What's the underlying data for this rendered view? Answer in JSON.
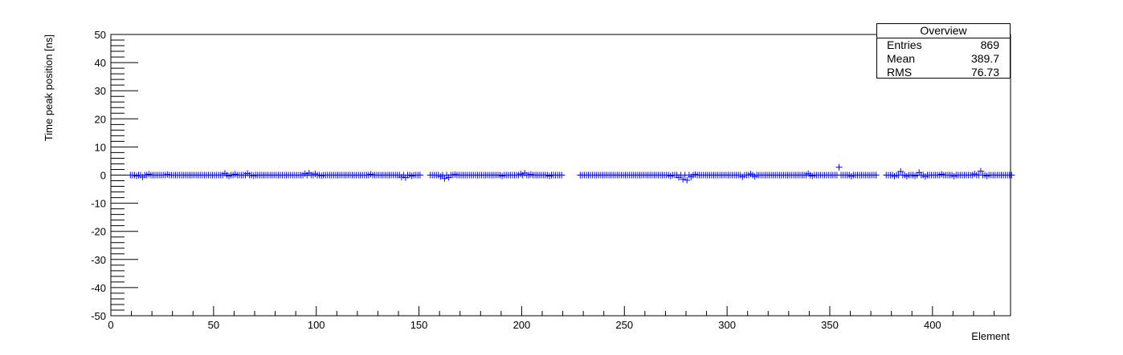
{
  "chart_data": {
    "type": "scatter",
    "title": "",
    "xlabel": "Element",
    "ylabel": "Time peak position [ns]",
    "xlim": [
      0,
      438
    ],
    "ylim": [
      -50,
      50
    ],
    "x_ticks": [
      0,
      50,
      100,
      150,
      200,
      250,
      300,
      350,
      400
    ],
    "y_ticks": [
      -50,
      -40,
      -30,
      -20,
      -10,
      0,
      10,
      20,
      30,
      40,
      50
    ],
    "marker": "+",
    "marker_color": "#0000ff",
    "grid": false,
    "ranges": [
      [
        9,
        150
      ],
      [
        155,
        219
      ],
      [
        228,
        372
      ],
      [
        377,
        438
      ]
    ],
    "baseline": 0.0,
    "points": [
      {
        "x": 12,
        "y": -0.3
      },
      {
        "x": 15,
        "y": -0.7
      },
      {
        "x": 18,
        "y": 0.3
      },
      {
        "x": 27,
        "y": 0.2
      },
      {
        "x": 55,
        "y": 0.6
      },
      {
        "x": 57,
        "y": -0.3
      },
      {
        "x": 60,
        "y": 0.3
      },
      {
        "x": 66,
        "y": 0.6
      },
      {
        "x": 69,
        "y": -0.2
      },
      {
        "x": 94,
        "y": 0.5
      },
      {
        "x": 96,
        "y": 0.7
      },
      {
        "x": 99,
        "y": 0.4
      },
      {
        "x": 102,
        "y": -0.2
      },
      {
        "x": 126,
        "y": 0.3
      },
      {
        "x": 141,
        "y": -0.7
      },
      {
        "x": 143,
        "y": -0.9
      },
      {
        "x": 146,
        "y": -0.3
      },
      {
        "x": 160,
        "y": -0.5
      },
      {
        "x": 162,
        "y": -1.2
      },
      {
        "x": 164,
        "y": -0.8
      },
      {
        "x": 167,
        "y": 0.2
      },
      {
        "x": 190,
        "y": -0.3
      },
      {
        "x": 199,
        "y": 0.4
      },
      {
        "x": 201,
        "y": 0.7
      },
      {
        "x": 204,
        "y": 0.2
      },
      {
        "x": 213,
        "y": -0.3
      },
      {
        "x": 272,
        "y": -0.3
      },
      {
        "x": 276,
        "y": -0.8
      },
      {
        "x": 278,
        "y": -1.5
      },
      {
        "x": 280,
        "y": -1.8
      },
      {
        "x": 282,
        "y": -0.6
      },
      {
        "x": 284,
        "y": 0.2
      },
      {
        "x": 307,
        "y": -0.6
      },
      {
        "x": 311,
        "y": 0.4
      },
      {
        "x": 313,
        "y": -0.5
      },
      {
        "x": 339,
        "y": 0.5
      },
      {
        "x": 341,
        "y": -0.3
      },
      {
        "x": 354,
        "y": 2.8
      },
      {
        "x": 360,
        "y": -0.4
      },
      {
        "x": 381,
        "y": -0.4
      },
      {
        "x": 384,
        "y": 1.3
      },
      {
        "x": 387,
        "y": -0.4
      },
      {
        "x": 391,
        "y": -0.3
      },
      {
        "x": 393,
        "y": 0.9
      },
      {
        "x": 396,
        "y": -0.5
      },
      {
        "x": 404,
        "y": 0.3
      },
      {
        "x": 410,
        "y": -0.4
      },
      {
        "x": 420,
        "y": 0.4
      },
      {
        "x": 423,
        "y": 1.4
      },
      {
        "x": 426,
        "y": -0.3
      }
    ]
  },
  "stats": {
    "title": "Overview",
    "rows": [
      {
        "label": "Entries",
        "value": "869"
      },
      {
        "label": "Mean",
        "value": "389.7"
      },
      {
        "label": "RMS",
        "value": "76.73"
      }
    ]
  }
}
